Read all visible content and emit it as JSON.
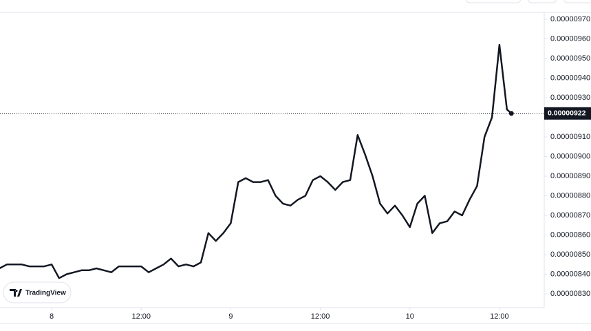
{
  "chart_data": {
    "type": "line",
    "brand": "TradingView",
    "x": [
      -7,
      -6,
      -5,
      -4,
      -3,
      -2,
      -1,
      0,
      1,
      2,
      3,
      4,
      5,
      6,
      7,
      8,
      9,
      10,
      11,
      12,
      13,
      14,
      15,
      16,
      17,
      18,
      19,
      20,
      21,
      22,
      23,
      24,
      25,
      26,
      27,
      28,
      29,
      30,
      31,
      32,
      33,
      34,
      35,
      36,
      37,
      38,
      39,
      40,
      41,
      42,
      43,
      44,
      45,
      46,
      47,
      48,
      49,
      50,
      51,
      52,
      53,
      54,
      55,
      56,
      57,
      58,
      59,
      60,
      61,
      61.6
    ],
    "values": [
      8.43e-06,
      8.45e-06,
      8.45e-06,
      8.45e-06,
      8.44e-06,
      8.44e-06,
      8.44e-06,
      8.45e-06,
      8.38e-06,
      8.4e-06,
      8.41e-06,
      8.42e-06,
      8.42e-06,
      8.43e-06,
      8.42e-06,
      8.41e-06,
      8.44e-06,
      8.44e-06,
      8.44e-06,
      8.44e-06,
      8.41e-06,
      8.43e-06,
      8.45e-06,
      8.48e-06,
      8.44e-06,
      8.45e-06,
      8.44e-06,
      8.46e-06,
      8.61e-06,
      8.57e-06,
      8.61e-06,
      8.66e-06,
      8.87e-06,
      8.89e-06,
      8.87e-06,
      8.87e-06,
      8.88e-06,
      8.8e-06,
      8.76e-06,
      8.75e-06,
      8.78e-06,
      8.8e-06,
      8.88e-06,
      8.9e-06,
      8.87e-06,
      8.83e-06,
      8.87e-06,
      8.88e-06,
      9.11e-06,
      9.01e-06,
      8.9e-06,
      8.76e-06,
      8.71e-06,
      8.75e-06,
      8.7e-06,
      8.64e-06,
      8.76e-06,
      8.8e-06,
      8.61e-06,
      8.66e-06,
      8.67e-06,
      8.72e-06,
      8.7e-06,
      8.78e-06,
      8.85e-06,
      9.1e-06,
      9.2e-06,
      9.57e-06,
      9.24e-06,
      9.22e-06
    ],
    "color": "#131722",
    "xlim": [
      -6.92,
      66
    ],
    "xticks": [
      {
        "value": 0,
        "label": "8"
      },
      {
        "value": 12,
        "label": "12:00"
      },
      {
        "value": 24,
        "label": "9"
      },
      {
        "value": 36,
        "label": "12:00"
      },
      {
        "value": 48,
        "label": "10"
      },
      {
        "value": 60,
        "label": "12:00"
      }
    ],
    "ylim": [
      8.23e-06,
      9.735e-06
    ],
    "yticks": [
      {
        "value": 9.7e-06,
        "label": "0.00000970"
      },
      {
        "value": 9.6e-06,
        "label": "0.00000960"
      },
      {
        "value": 9.5e-06,
        "label": "0.00000950"
      },
      {
        "value": 9.4e-06,
        "label": "0.00000940"
      },
      {
        "value": 9.3e-06,
        "label": "0.00000930"
      },
      {
        "value": 9.1e-06,
        "label": "0.00000910"
      },
      {
        "value": 9e-06,
        "label": "0.00000900"
      },
      {
        "value": 8.9e-06,
        "label": "0.00000890"
      },
      {
        "value": 8.8e-06,
        "label": "0.00000880"
      },
      {
        "value": 8.7e-06,
        "label": "0.00000870"
      },
      {
        "value": 8.6e-06,
        "label": "0.00000860"
      },
      {
        "value": 8.5e-06,
        "label": "0.00000850"
      },
      {
        "value": 8.4e-06,
        "label": "0.00000840"
      },
      {
        "value": 8.3e-06,
        "label": "0.00000830"
      }
    ],
    "last_price": {
      "value": 9.22e-06,
      "label": "0.00000922"
    }
  }
}
